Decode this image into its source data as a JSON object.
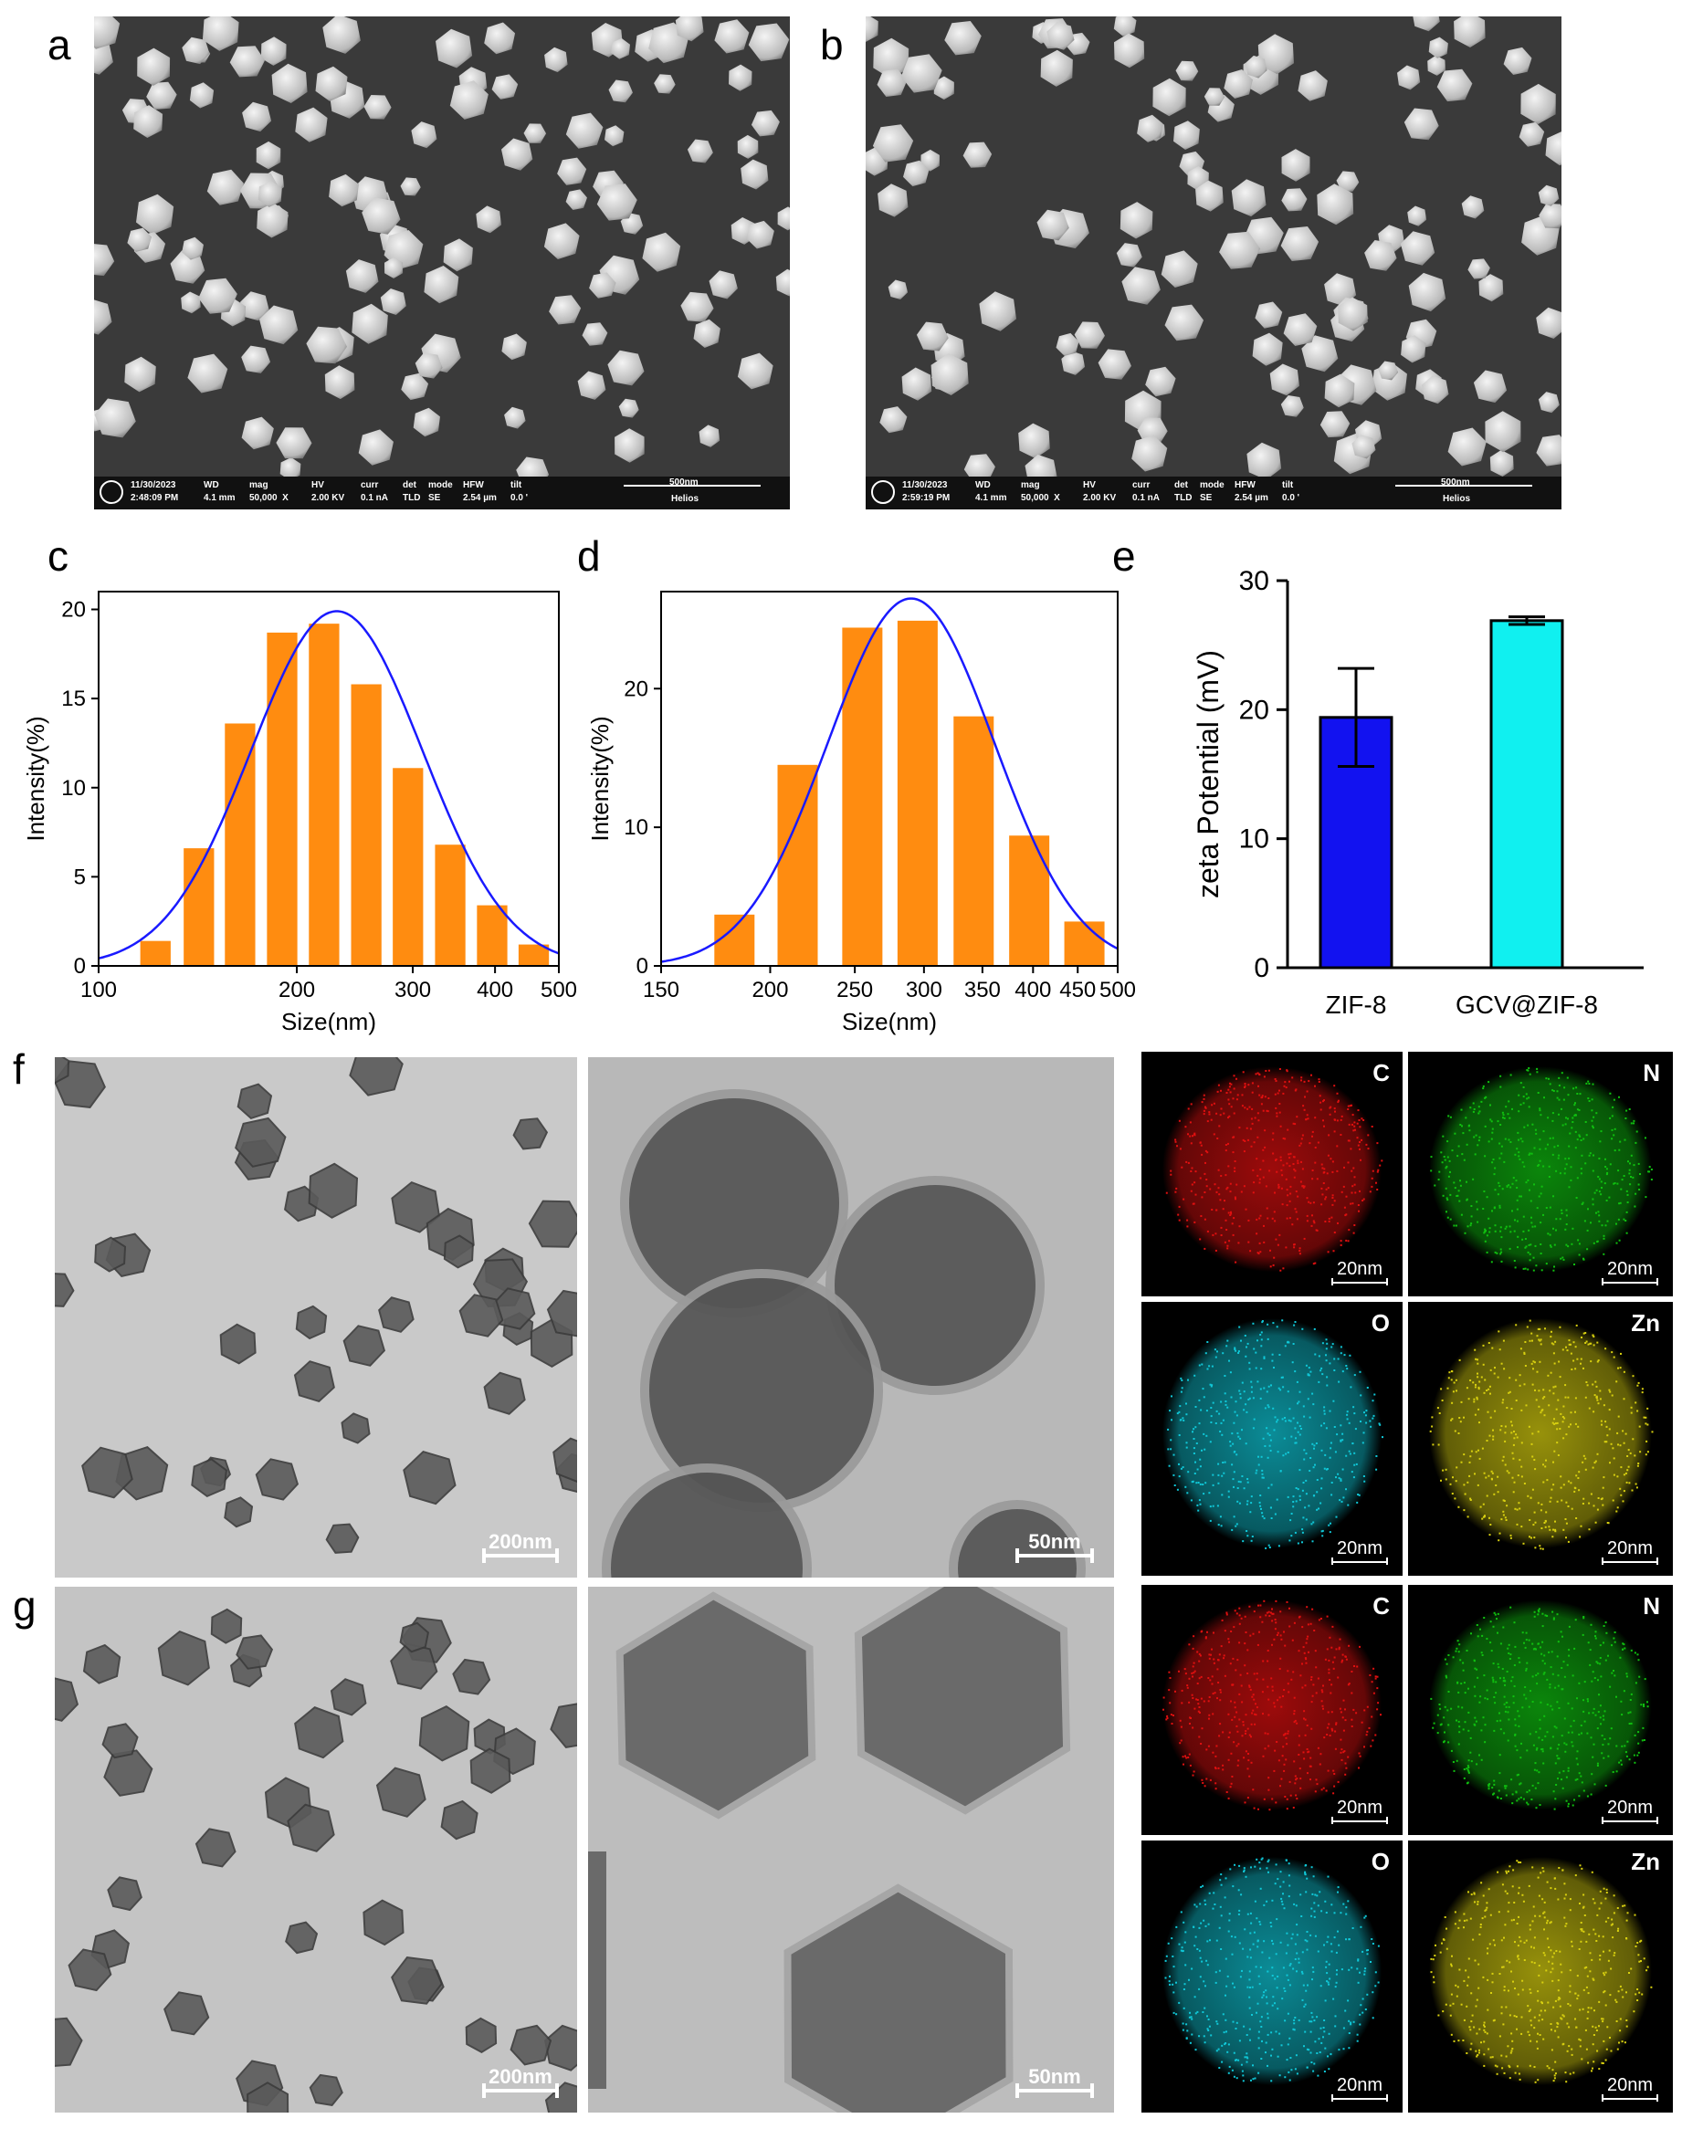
{
  "panels": {
    "a": {
      "label": "a"
    },
    "b": {
      "label": "b"
    },
    "c": {
      "label": "c"
    },
    "d": {
      "label": "d"
    },
    "e": {
      "label": "e"
    },
    "f": {
      "label": "f"
    },
    "g": {
      "label": "g"
    }
  },
  "sem_a": {
    "date": "11/30/2023",
    "time": "2:48:09 PM",
    "wd_label": "WD",
    "wd": "4.1 mm",
    "mag_label": "mag",
    "mag": "50,000  X",
    "hv_label": "HV",
    "hv": "2.00 KV",
    "curr_label": "curr",
    "curr": "0.1 nA",
    "det_label": "det",
    "det": "TLD",
    "mode_label": "mode",
    "mode": "SE",
    "hfw_label": "HFW",
    "hfw": "2.54 µm",
    "tilt_label": "tilt",
    "tilt": "0.0 '",
    "scale": "500nm",
    "instrument": "Helios"
  },
  "sem_b": {
    "date": "11/30/2023",
    "time": "2:59:19 PM",
    "wd_label": "WD",
    "wd": "4.1 mm",
    "mag_label": "mag",
    "mag": "50,000  X",
    "hv_label": "HV",
    "hv": "2.00 KV",
    "curr_label": "curr",
    "curr": "0.1 nA",
    "det_label": "det",
    "det": "TLD",
    "mode_label": "mode",
    "mode": "SE",
    "hfw_label": "HFW",
    "hfw": "2.54 µm",
    "tilt_label": "tilt",
    "tilt": "0.0 '",
    "scale": "500nm",
    "instrument": "Helios"
  },
  "tem": {
    "f_low_scale": "200nm",
    "f_high_scale": "50nm",
    "g_low_scale": "200nm",
    "g_high_scale": "50nm"
  },
  "eds": {
    "f": [
      {
        "element": "C",
        "scale": "20nm",
        "color": "#e01010"
      },
      {
        "element": "N",
        "scale": "20nm",
        "color": "#10c010"
      },
      {
        "element": "O",
        "scale": "20nm",
        "color": "#10c8d8"
      },
      {
        "element": "Zn",
        "scale": "20nm",
        "color": "#d8d010"
      }
    ],
    "g": [
      {
        "element": "C",
        "scale": "20nm",
        "color": "#e01010"
      },
      {
        "element": "N",
        "scale": "20nm",
        "color": "#10c010"
      },
      {
        "element": "O",
        "scale": "20nm",
        "color": "#10c8d8"
      },
      {
        "element": "Zn",
        "scale": "20nm",
        "color": "#d8d010"
      }
    ]
  },
  "chart_data": [
    {
      "id": "c",
      "type": "bar",
      "x_scale": "log",
      "xlabel": "Size(nm)",
      "ylabel": "Intensity(%)",
      "xlim": [
        100,
        500
      ],
      "ylim": [
        0,
        21
      ],
      "xticks": [
        100,
        200,
        300,
        400,
        500
      ],
      "yticks": [
        0,
        5,
        10,
        15,
        20
      ],
      "bar_color": "#ff8c10",
      "curve_color": "#1a1aff",
      "bars": [
        {
          "x": 122,
          "value": 1.4
        },
        {
          "x": 142,
          "value": 6.6
        },
        {
          "x": 164,
          "value": 13.6
        },
        {
          "x": 190,
          "value": 18.7
        },
        {
          "x": 220,
          "value": 19.2
        },
        {
          "x": 255,
          "value": 15.8
        },
        {
          "x": 295,
          "value": 11.1
        },
        {
          "x": 342,
          "value": 6.8
        },
        {
          "x": 396,
          "value": 3.4
        },
        {
          "x": 458,
          "value": 1.2
        }
      ],
      "fit": {
        "model": "lognormal",
        "peak_x": 230,
        "peak_y": 19.9,
        "sigma_ln": 0.3
      }
    },
    {
      "id": "d",
      "type": "bar",
      "x_scale": "log",
      "xlabel": "Size(nm)",
      "ylabel": "Intensity(%)",
      "xlim": [
        150,
        500
      ],
      "ylim": [
        0,
        27
      ],
      "xticks": [
        150,
        200,
        250,
        300,
        350,
        400,
        450,
        500
      ],
      "yticks": [
        0,
        10,
        20
      ],
      "bar_color": "#ff8c10",
      "curve_color": "#1a1aff",
      "bars": [
        {
          "x": 182,
          "value": 3.7
        },
        {
          "x": 215,
          "value": 14.5
        },
        {
          "x": 255,
          "value": 24.4
        },
        {
          "x": 295,
          "value": 24.9
        },
        {
          "x": 342,
          "value": 18.0
        },
        {
          "x": 396,
          "value": 9.4
        },
        {
          "x": 458,
          "value": 3.2
        }
      ],
      "fit": {
        "model": "lognormal",
        "peak_x": 290,
        "peak_y": 26.5,
        "sigma_ln": 0.22
      }
    },
    {
      "id": "e",
      "type": "bar",
      "ylabel": "zeta Potential (mV)",
      "ylim": [
        0,
        30
      ],
      "yticks": [
        0,
        10,
        20,
        30
      ],
      "categories": [
        "ZIF-8",
        "GCV@ZIF-8"
      ],
      "values": [
        19.4,
        26.9
      ],
      "errors": [
        3.8,
        0.3
      ],
      "colors": [
        "#1212f0",
        "#10f0f0"
      ]
    }
  ]
}
